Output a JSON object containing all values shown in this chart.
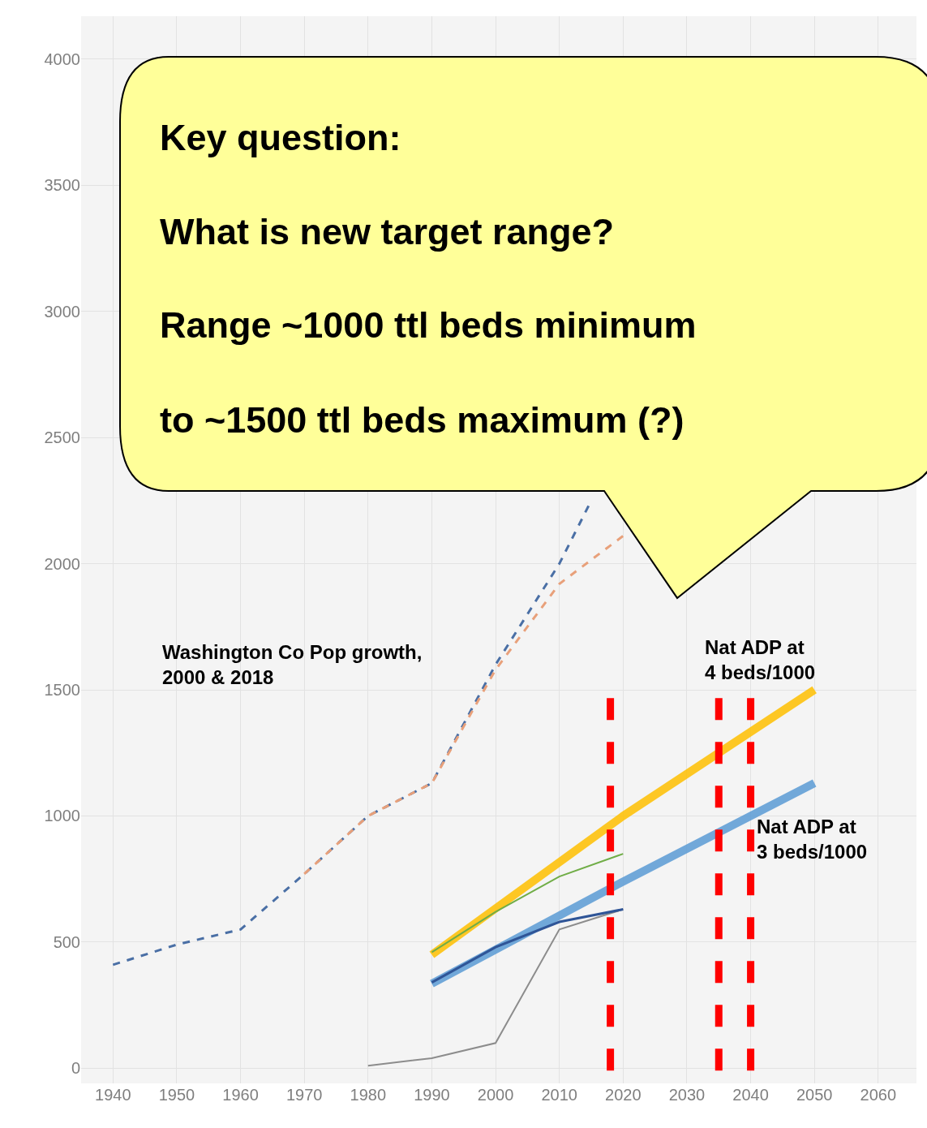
{
  "chart_data": {
    "type": "line",
    "xlim": [
      1935,
      2066
    ],
    "xticks": [
      1940,
      1950,
      1960,
      1970,
      1980,
      1990,
      2000,
      2010,
      2020,
      2030,
      2040,
      2050,
      2060
    ],
    "ylim": [
      -60,
      4170
    ],
    "yticks": [
      0,
      500,
      1000,
      1500,
      2000,
      2500,
      3000,
      3500,
      4000
    ],
    "grid": true,
    "legend": false,
    "marker": "none",
    "series": [
      {
        "color": "#4a6fa5",
        "line_style": "dashed",
        "x": [
          1940,
          1950,
          1960,
          1970,
          1980,
          1990,
          2000,
          2010,
          2015
        ],
        "values": [
          410,
          490,
          550,
          770,
          1000,
          1130,
          1600,
          2000,
          2250
        ]
      },
      {
        "color": "#e8a07a",
        "line_style": "dashed",
        "x": [
          1970,
          1980,
          1990,
          2000,
          2010,
          2020
        ],
        "values": [
          770,
          1000,
          1130,
          1580,
          1920,
          2110
        ]
      },
      {
        "color": "#8c8c8c",
        "line_style": "solid",
        "x": [
          1980,
          1990,
          2000,
          2010,
          2020
        ],
        "values": [
          10,
          40,
          100,
          550,
          630
        ]
      },
      {
        "color": "#ffc000",
        "line_style": "solid",
        "x": [
          1990,
          2020,
          2050
        ],
        "values": [
          450,
          1000,
          1500
        ]
      },
      {
        "color": "#5b9bd5",
        "line_style": "solid",
        "x": [
          1990,
          2020,
          2050
        ],
        "values": [
          335,
          740,
          1130
        ]
      },
      {
        "color": "#2f5597",
        "line_style": "solid",
        "x": [
          1990,
          2000,
          2010,
          2020
        ],
        "values": [
          340,
          480,
          580,
          630
        ]
      },
      {
        "color": "#70ad47",
        "line_style": "solid",
        "x": [
          1990,
          2000,
          2010,
          2020
        ],
        "values": [
          460,
          620,
          760,
          850
        ]
      }
    ],
    "ref_lines": [
      {
        "axis": "x",
        "value": 2018,
        "color": "#ff0000",
        "line_style": "dashed"
      },
      {
        "axis": "x",
        "value": 2035,
        "color": "#ff0000",
        "line_style": "dashed"
      },
      {
        "axis": "x",
        "value": 2040,
        "color": "#ff0000",
        "line_style": "dashed"
      }
    ],
    "annotations": [
      "Key question:",
      "What is new target range?",
      "Range ~1000 ttl beds minimum",
      "to ~1500 ttl beds maximum (?)",
      "Washington Co Pop growth,\n2000 & 2018",
      {
        "text": "Nat ADP at\n4 beds/1000",
        "x": 2050,
        "y": 1500
      },
      {
        "text": "Nat ADP at\n3 beds/1000",
        "x": 2050,
        "y": 1130
      }
    ]
  }
}
